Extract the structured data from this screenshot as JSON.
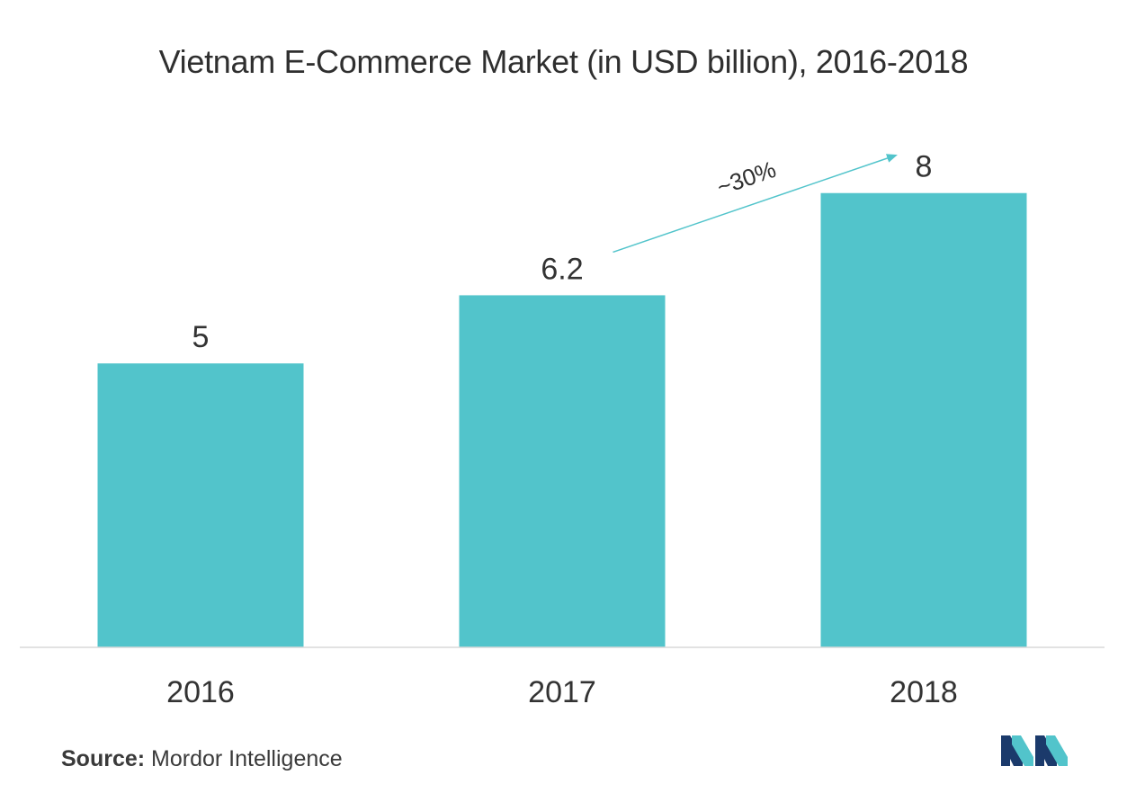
{
  "chart_data": {
    "type": "bar",
    "title": "Vietnam E-Commerce Market (in USD billion), 2016-2018",
    "categories": [
      "2016",
      "2017",
      "2018"
    ],
    "values": [
      5,
      6.2,
      8
    ],
    "data_labels": [
      "5",
      "6.2",
      "8"
    ],
    "ylim": [
      0,
      9.5
    ],
    "grid": false,
    "legend": "none",
    "bar_color": "#52c4cb",
    "annotation": {
      "text": "~30%",
      "from_category": "2017",
      "to_category": "2018",
      "color": "#52c4cb"
    }
  },
  "source": {
    "label": "Source:",
    "text": "Mordor Intelligence"
  },
  "logo": {
    "icon": "mordor-intelligence-logo",
    "colors": [
      "#1b3a6b",
      "#52c4cb"
    ]
  }
}
